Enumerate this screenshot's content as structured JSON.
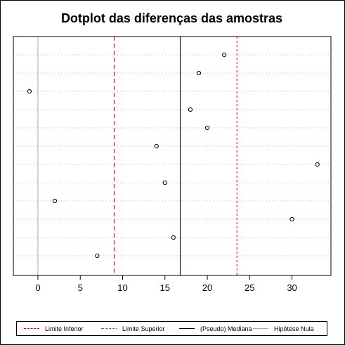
{
  "chart_data": {
    "type": "scatter",
    "title": "Dotplot das diferenças das amostras",
    "xlabel": "",
    "ylabel": "",
    "xlim": [
      -2.9,
      34.6
    ],
    "x_ticks": [
      0,
      5,
      10,
      15,
      20,
      25,
      30
    ],
    "x_tick_labels": [
      "0",
      "5",
      "10",
      "15",
      "20",
      "25",
      "30"
    ],
    "points": [
      {
        "row": 1,
        "x": 22
      },
      {
        "row": 2,
        "x": 19
      },
      {
        "row": 3,
        "x": -1
      },
      {
        "row": 4,
        "x": 18
      },
      {
        "row": 5,
        "x": 20
      },
      {
        "row": 6,
        "x": 14
      },
      {
        "row": 7,
        "x": 33
      },
      {
        "row": 8,
        "x": 15
      },
      {
        "row": 9,
        "x": 2
      },
      {
        "row": 10,
        "x": 30
      },
      {
        "row": 11,
        "x": 16
      },
      {
        "row": 12,
        "x": 7
      }
    ],
    "reference_lines": [
      {
        "key": "limite_inferior",
        "x": 9,
        "color": "#dd0000",
        "style": "dashed"
      },
      {
        "key": "limite_superior",
        "x": 23.5,
        "color": "#dd0000",
        "style": "dotted"
      },
      {
        "key": "pseudo_mediana",
        "x": 16.8,
        "color": "#000000",
        "style": "solid"
      },
      {
        "key": "hipotese_nula",
        "x": 0,
        "color": "#aaaaaa",
        "style": "solid"
      }
    ],
    "grid": true,
    "legend": {
      "placement": "bottom",
      "entries": [
        {
          "label": "Limite Inferior",
          "color": "#dd0000",
          "style": "dashed"
        },
        {
          "label": "Limite Superior",
          "color": "#dd0000",
          "style": "dotted"
        },
        {
          "label": "(Pseudo) Mediana",
          "color": "#000000",
          "style": "solid"
        },
        {
          "label": "Hipótese Nula",
          "color": "#aaaaaa",
          "style": "solid"
        }
      ]
    }
  }
}
